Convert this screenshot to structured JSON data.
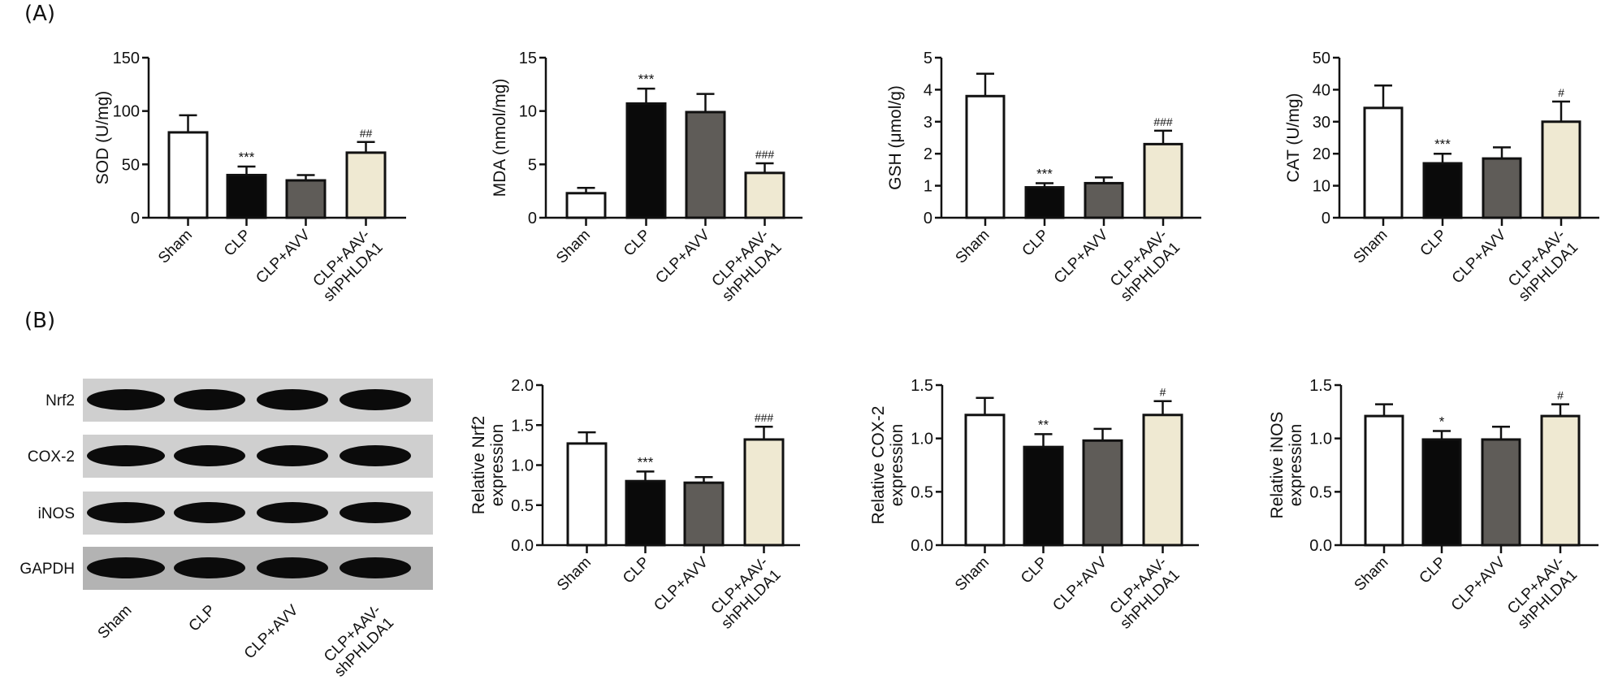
{
  "panel_labels": {
    "a": "(A)",
    "b": "(B)"
  },
  "groups": [
    "Sham",
    "CLP",
    "CLP+AVV",
    "CLP+AAV-\nshPHLDA1"
  ],
  "bar_colors": [
    "#ffffff",
    "#0a0a0a",
    "#5f5c58",
    "#efe9d2"
  ],
  "western_blot": {
    "proteins": [
      "Nrf2",
      "COX-2",
      "iNOS",
      "GAPDH"
    ],
    "lanes": [
      "Sham",
      "CLP",
      "CLP+AVV",
      "CLP+AAV-\nshPHLDA1"
    ]
  },
  "chart_data": [
    {
      "type": "bar",
      "panel": "A",
      "ylabel": "SOD (U/mg)",
      "ylim": [
        0,
        150
      ],
      "yticks": [
        "0",
        "50",
        "100",
        "150"
      ],
      "categories": [
        "Sham",
        "CLP",
        "CLP+AVV",
        "CLP+AAV-\nshPHLDA1"
      ],
      "values": [
        80,
        40,
        35,
        61
      ],
      "errors": [
        16,
        8,
        5,
        10
      ],
      "significance": [
        "",
        "***",
        "",
        "##"
      ]
    },
    {
      "type": "bar",
      "panel": "A",
      "ylabel": "MDA (nmol/mg)",
      "ylim": [
        0,
        15
      ],
      "yticks": [
        "0",
        "5",
        "10",
        "15"
      ],
      "categories": [
        "Sham",
        "CLP",
        "CLP+AVV",
        "CLP+AAV-\nshPHLDA1"
      ],
      "values": [
        2.3,
        10.7,
        9.9,
        4.2
      ],
      "errors": [
        0.5,
        1.4,
        1.7,
        0.9
      ],
      "significance": [
        "",
        "***",
        "",
        "###"
      ]
    },
    {
      "type": "bar",
      "panel": "A",
      "ylabel": "GSH (μmol/g)",
      "ylim": [
        0,
        5
      ],
      "yticks": [
        "0",
        "1",
        "2",
        "3",
        "4",
        "5"
      ],
      "categories": [
        "Sham",
        "CLP",
        "CLP+AVV",
        "CLP+AAV-\nshPHLDA1"
      ],
      "values": [
        3.8,
        0.95,
        1.08,
        2.3
      ],
      "errors": [
        0.7,
        0.13,
        0.18,
        0.42
      ],
      "significance": [
        "",
        "***",
        "",
        "###"
      ]
    },
    {
      "type": "bar",
      "panel": "A",
      "ylabel": "CAT (U/mg)",
      "ylim": [
        0,
        50
      ],
      "yticks": [
        "0",
        "10",
        "20",
        "30",
        "40",
        "50"
      ],
      "categories": [
        "Sham",
        "CLP",
        "CLP+AVV",
        "CLP+AAV-\nshPHLDA1"
      ],
      "values": [
        34.3,
        17,
        18.5,
        30
      ],
      "errors": [
        7,
        3,
        3.5,
        6.3
      ],
      "significance": [
        "",
        "***",
        "",
        "#"
      ]
    },
    {
      "type": "bar",
      "panel": "B",
      "ylabel": "Relative Nrf2\nexpression",
      "ylim": [
        0,
        2
      ],
      "yticks": [
        "0.0",
        "0.5",
        "1.0",
        "1.5",
        "2.0"
      ],
      "categories": [
        "Sham",
        "CLP",
        "CLP+AVV",
        "CLP+AAV-\nshPHLDA1"
      ],
      "values": [
        1.27,
        0.8,
        0.78,
        1.32
      ],
      "errors": [
        0.14,
        0.12,
        0.07,
        0.16
      ],
      "significance": [
        "",
        "***",
        "",
        "###"
      ]
    },
    {
      "type": "bar",
      "panel": "B",
      "ylabel": "Relative COX-2\nexpression",
      "ylim": [
        0,
        1.5
      ],
      "yticks": [
        "0.0",
        "0.5",
        "1.0",
        "1.5"
      ],
      "categories": [
        "Sham",
        "CLP",
        "CLP+AVV",
        "CLP+AAV-\nshPHLDA1"
      ],
      "values": [
        1.22,
        0.92,
        0.98,
        1.22
      ],
      "errors": [
        0.16,
        0.12,
        0.11,
        0.13
      ],
      "significance": [
        "",
        "**",
        "",
        "#"
      ]
    },
    {
      "type": "bar",
      "panel": "B",
      "ylabel": "Relative iNOS\nexpression",
      "ylim": [
        0,
        1.5
      ],
      "yticks": [
        "0.0",
        "0.5",
        "1.0",
        "1.5"
      ],
      "categories": [
        "Sham",
        "CLP",
        "CLP+AVV",
        "CLP+AAV-\nshPHLDA1"
      ],
      "values": [
        1.21,
        0.99,
        0.99,
        1.21
      ],
      "errors": [
        0.11,
        0.08,
        0.12,
        0.11
      ],
      "significance": [
        "",
        "*",
        "",
        "#"
      ]
    }
  ]
}
